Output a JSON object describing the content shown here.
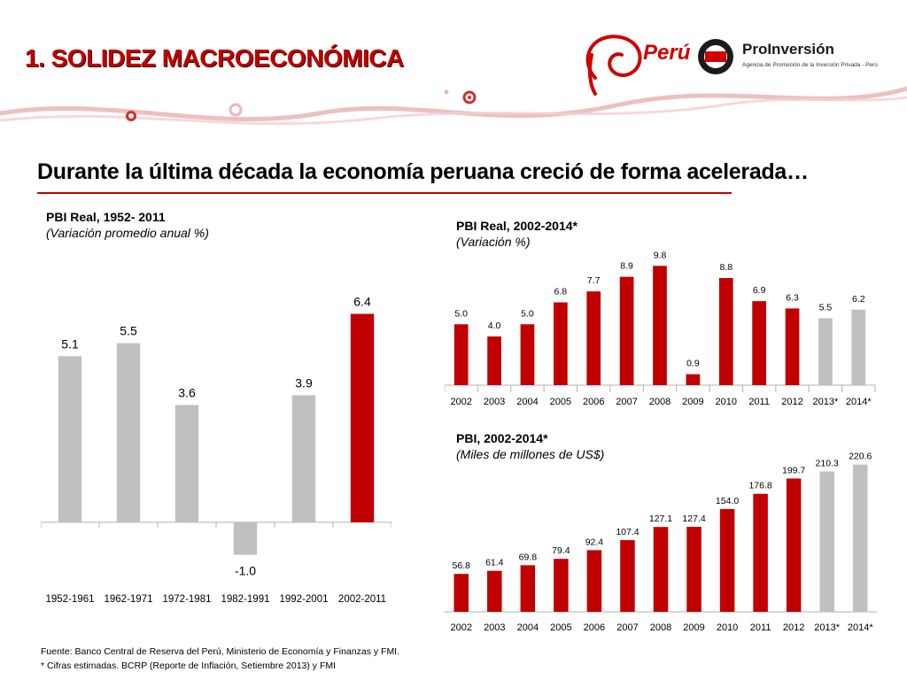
{
  "header": {
    "title": "1. SOLIDEZ MACROECONÓMICA",
    "subtitle": "Durante la última década la economía peruana creció de forma acelerada…",
    "logo_peru": "Perú",
    "logo_proinversion": "ProInversión",
    "logo_proinversion_tagline": "Agencia de Promoción de la Inversión Privada - Perú"
  },
  "footer": {
    "source": "Fuente: Banco Central de Reserva del Perú, Ministerio de Economía y Finanzas y FMI.",
    "note": "* Cifras estimadas. BCRP (Reporte de Inflación, Setiembre 2013) y FMI"
  },
  "colors": {
    "red": "#c00000",
    "gray": "#c0c0c0",
    "accent_line": "#c00000"
  },
  "chart_data": [
    {
      "type": "bar",
      "title": "PBI Real, 1952- 2011",
      "subtitle": "(Variación promedio anual %)",
      "categories": [
        "1952-1961",
        "1962-1971",
        "1972-1981",
        "1982-1991",
        "1992-2001",
        "2002-2011"
      ],
      "values": [
        5.1,
        5.5,
        3.6,
        -1.0,
        3.9,
        6.4
      ],
      "colors": [
        "#c0c0c0",
        "#c0c0c0",
        "#c0c0c0",
        "#c0c0c0",
        "#c0c0c0",
        "#c00000"
      ],
      "labels": [
        "5.1",
        "5.5",
        "3.6",
        "-1.0",
        "3.9",
        "6.4"
      ],
      "ylim": [
        -1.5,
        7.5
      ]
    },
    {
      "type": "bar",
      "title": "PBI Real, 2002-2014*",
      "subtitle": "(Variación %)",
      "categories": [
        "2002",
        "2003",
        "2004",
        "2005",
        "2006",
        "2007",
        "2008",
        "2009",
        "2010",
        "2011",
        "2012",
        "2013*",
        "2014*"
      ],
      "values": [
        5.0,
        4.0,
        5.0,
        6.8,
        7.7,
        8.9,
        9.8,
        0.9,
        8.8,
        6.9,
        6.3,
        5.5,
        6.2
      ],
      "colors": [
        "#c00000",
        "#c00000",
        "#c00000",
        "#c00000",
        "#c00000",
        "#c00000",
        "#c00000",
        "#c00000",
        "#c00000",
        "#c00000",
        "#c00000",
        "#c0c0c0",
        "#c0c0c0"
      ],
      "labels": [
        "5.0",
        "4.0",
        "5.0",
        "6.8",
        "7.7",
        "8.9",
        "9.8",
        "0.9",
        "8.8",
        "6.9",
        "6.3",
        "5.5",
        "6.2"
      ],
      "ylim": [
        0,
        12
      ]
    },
    {
      "type": "bar",
      "title": "PBI, 2002-2014*",
      "subtitle": "(Miles de millones de US$)",
      "categories": [
        "2002",
        "2003",
        "2004",
        "2005",
        "2006",
        "2007",
        "2008",
        "2009",
        "2010",
        "2011",
        "2012",
        "2013*",
        "2014*"
      ],
      "values": [
        56.8,
        61.4,
        69.8,
        79.4,
        92.4,
        107.4,
        127.1,
        127.4,
        154.0,
        176.8,
        199.7,
        210.3,
        220.6
      ],
      "colors": [
        "#c00000",
        "#c00000",
        "#c00000",
        "#c00000",
        "#c00000",
        "#c00000",
        "#c00000",
        "#c00000",
        "#c00000",
        "#c00000",
        "#c00000",
        "#c0c0c0",
        "#c0c0c0"
      ],
      "labels": [
        "56.8",
        "61.4",
        "69.8",
        "79.4",
        "92.4",
        "107.4",
        "127.1",
        "127.4",
        "154.0",
        "176.8",
        "199.7",
        "210.3",
        "220.6"
      ],
      "ylim": [
        0,
        260
      ]
    }
  ]
}
